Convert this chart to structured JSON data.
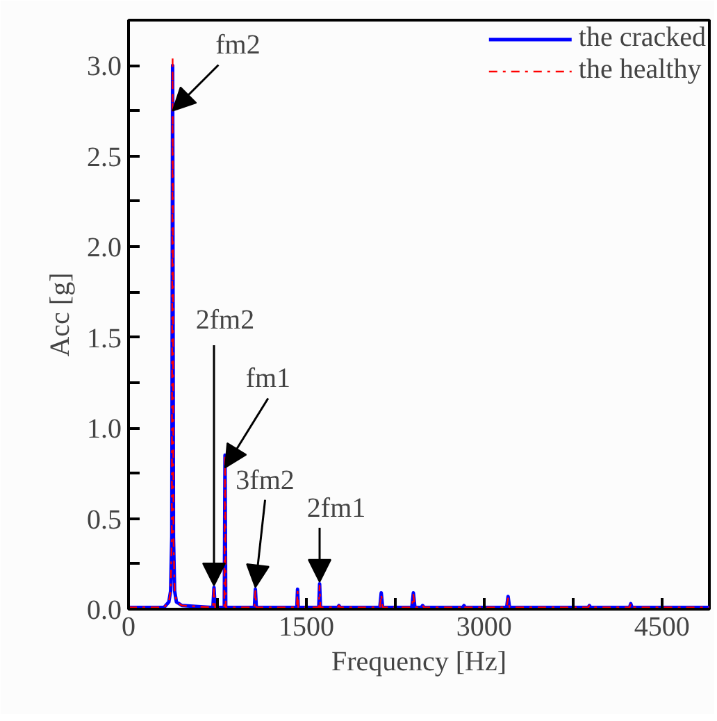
{
  "chart_data": {
    "type": "line",
    "xlabel": "Frequency [Hz]",
    "ylabel": "Acc [g]",
    "x": [
      0,
      300,
      340,
      355,
      365,
      372,
      379,
      389,
      404,
      450,
      700,
      712,
      721,
      730,
      800,
      808,
      814,
      820,
      1050,
      1062,
      1070,
      1078,
      1410,
      1420,
      1426,
      1432,
      1595,
      1605,
      1612,
      1619,
      1765,
      1775,
      1785,
      2120,
      2132,
      2144,
      2390,
      2403,
      2416,
      2470,
      2481,
      2492,
      2820,
      2830,
      2840,
      3190,
      3202,
      3214,
      3530,
      3539,
      3548,
      3878,
      3888,
      3898,
      4227,
      4237,
      4247,
      4583,
      4593,
      4603,
      4900
    ],
    "series": [
      {
        "name": "the cracked",
        "color": "#0000ff",
        "line_style": "solid",
        "values": [
          0.01,
          0.01,
          0.04,
          0.1,
          0.4,
          3.0,
          0.4,
          0.1,
          0.04,
          0.02,
          0.01,
          0.01,
          0.12,
          0.01,
          0.01,
          0.01,
          0.85,
          0.01,
          0.01,
          0.01,
          0.11,
          0.01,
          0.01,
          0.01,
          0.11,
          0.01,
          0.01,
          0.01,
          0.14,
          0.01,
          0.01,
          0.02,
          0.01,
          0.01,
          0.09,
          0.01,
          0.01,
          0.09,
          0.01,
          0.01,
          0.02,
          0.01,
          0.01,
          0.02,
          0.01,
          0.01,
          0.07,
          0.01,
          0.01,
          0.01,
          0.01,
          0.01,
          0.02,
          0.01,
          0.01,
          0.03,
          0.01,
          0.01,
          0.01,
          0.01,
          0.01
        ]
      },
      {
        "name": "the healthy",
        "color": "#ff0000",
        "line_style": "dashdot",
        "values": [
          0.01,
          0.01,
          0.04,
          0.1,
          0.4,
          3.04,
          0.4,
          0.1,
          0.04,
          0.02,
          0.01,
          0.01,
          0.11,
          0.01,
          0.01,
          0.01,
          0.85,
          0.01,
          0.01,
          0.01,
          0.1,
          0.01,
          0.01,
          0.01,
          0.1,
          0.01,
          0.01,
          0.01,
          0.13,
          0.01,
          0.01,
          0.02,
          0.01,
          0.01,
          0.08,
          0.01,
          0.01,
          0.08,
          0.01,
          0.01,
          0.02,
          0.01,
          0.01,
          0.02,
          0.01,
          0.01,
          0.06,
          0.01,
          0.01,
          0.01,
          0.01,
          0.01,
          0.02,
          0.01,
          0.01,
          0.03,
          0.01,
          0.01,
          0.01,
          0.01,
          0.01
        ]
      }
    ],
    "xlim": [
      0,
      4900
    ],
    "ylim": [
      0,
      3.25
    ],
    "xticks": [
      0,
      {
        "value": 750,
        "label": null
      },
      1500,
      {
        "value": 2250,
        "label": null
      },
      3000,
      {
        "value": 3750,
        "label": null
      },
      4500
    ],
    "yticks": [
      {
        "value": 0,
        "label": "0.0"
      },
      {
        "value": 0.25,
        "label": null
      },
      {
        "value": 0.5,
        "label": "0.5"
      },
      {
        "value": 0.75,
        "label": null
      },
      {
        "value": 1,
        "label": "1.0"
      },
      {
        "value": 1.25,
        "label": null
      },
      {
        "value": 1.5,
        "label": "1.5"
      },
      {
        "value": 1.75,
        "label": null
      },
      {
        "value": 2,
        "label": "2.0"
      },
      {
        "value": 2.25,
        "label": null
      },
      {
        "value": 2.5,
        "label": "2.5"
      },
      {
        "value": 2.75,
        "label": null
      },
      {
        "value": 3,
        "label": "3.0"
      }
    ],
    "annotations": [
      {
        "text": "fm2",
        "x": 372,
        "y": 2.75
      },
      {
        "text": "2fm2",
        "x": 721,
        "y": 0.13
      },
      {
        "text": "fm1",
        "x": 814,
        "y": 0.78
      },
      {
        "text": "3fm2",
        "x": 1070,
        "y": 0.12
      },
      {
        "text": "2fm1",
        "x": 1612,
        "y": 0.15
      }
    ],
    "legend": "top right",
    "grid": false
  }
}
